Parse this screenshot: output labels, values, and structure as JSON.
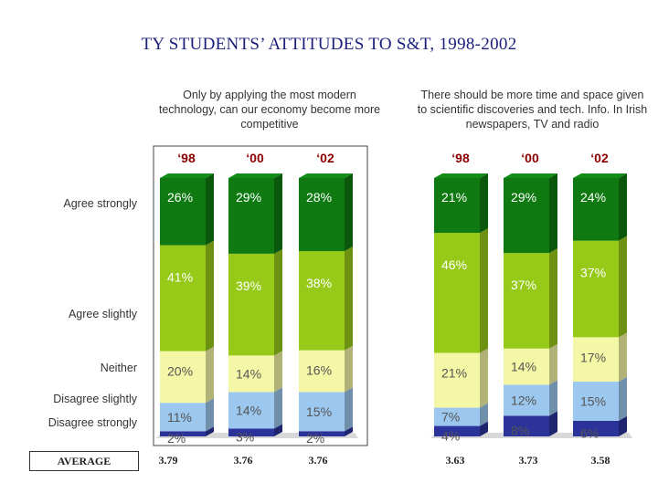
{
  "title": "TY STUDENTS’ ATTITUDES TO S&T, 1998-2002",
  "colors": {
    "agree_strongly": "#0f7a12",
    "agree_slightly": "#97c918",
    "neither": "#f4f7a6",
    "disagree_slightly": "#9cc7ee",
    "disagree_strongly": "#2b3299",
    "year_label": "#8b0000",
    "value_label": "#555555"
  },
  "row_labels": [
    "Agree strongly",
    "Agree slightly",
    "Neither",
    "Disagree slightly",
    "Disagree strongly"
  ],
  "average_label": "AVERAGE",
  "chart_data": [
    {
      "type": "bar",
      "stacked": true,
      "title": "Only by applying the most modern technology, can our economy become more competitive",
      "categories": [
        "‘98",
        "‘00",
        "‘02"
      ],
      "series": [
        {
          "name": "Agree strongly",
          "values": [
            26,
            29,
            28
          ]
        },
        {
          "name": "Agree slightly",
          "values": [
            41,
            39,
            38
          ]
        },
        {
          "name": "Neither",
          "values": [
            20,
            14,
            16
          ]
        },
        {
          "name": "Disagree slightly",
          "values": [
            11,
            14,
            15
          ]
        },
        {
          "name": "Disagree strongly",
          "values": [
            2,
            3,
            2
          ]
        }
      ],
      "labels": [
        [
          "26%",
          "41%",
          "20%",
          "11%",
          "2%"
        ],
        [
          "29%",
          "39%",
          "14%",
          "14%",
          "3%"
        ],
        [
          "28%",
          "38%",
          "16%",
          "15%",
          "2%"
        ]
      ],
      "averages": [
        "3.79",
        "3.76",
        "3.76"
      ],
      "ylim": [
        0,
        100
      ]
    },
    {
      "type": "bar",
      "stacked": true,
      "title": "There should be more time and space given to scientific discoveries and tech. Info. In Irish newspapers, TV and radio",
      "categories": [
        "‘98",
        "‘00",
        "‘02"
      ],
      "series": [
        {
          "name": "Agree strongly",
          "values": [
            21,
            29,
            24
          ]
        },
        {
          "name": "Agree slightly",
          "values": [
            46,
            37,
            37
          ]
        },
        {
          "name": "Neither",
          "values": [
            21,
            14,
            17
          ]
        },
        {
          "name": "Disagree slightly",
          "values": [
            7,
            12,
            15
          ]
        },
        {
          "name": "Disagree strongly",
          "values": [
            4,
            8,
            6
          ]
        }
      ],
      "labels": [
        [
          "21%",
          "46%",
          "21%",
          "7%",
          "4%"
        ],
        [
          "29%",
          "37%",
          "14%",
          "12%",
          "8%"
        ],
        [
          "24%",
          "37%",
          "17%",
          "15%",
          "6%"
        ]
      ],
      "averages": [
        "3.63",
        "3.73",
        "3.58"
      ],
      "ylim": [
        0,
        100
      ]
    }
  ]
}
